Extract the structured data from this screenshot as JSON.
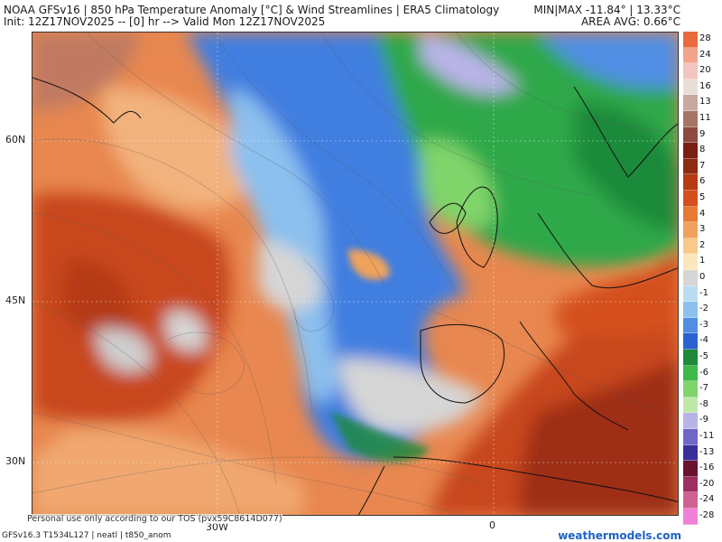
{
  "header": {
    "title": "NOAA GFSv16 | 850 hPa Temperature Anomaly [°C] & Wind Streamlines | ERA5 Climatology",
    "init": "Init: 12Z17NOV2025 -- [0] hr --> Valid Mon 12Z17NOV2025",
    "minmax": "MIN|MAX -11.84° | 13.33°C",
    "area_avg": "AREA AVG: 0.66°C"
  },
  "map": {
    "lat_labels": [
      "60N",
      "45N",
      "30N"
    ],
    "lon_labels": [
      "30W",
      "0"
    ],
    "disclaimer": "Personal use only according to our TOS (pvx59C8614D077)"
  },
  "colorbar": {
    "labels": [
      "28",
      "24",
      "20",
      "16",
      "13",
      "11",
      "9",
      "8",
      "7",
      "6",
      "5",
      "4",
      "3",
      "2",
      "1",
      "0",
      "-1",
      "-2",
      "-3",
      "-4",
      "-5",
      "-6",
      "-7",
      "-8",
      "-9",
      "-11",
      "-13",
      "-16",
      "-20",
      "-24",
      "-28"
    ],
    "colors": [
      "#e86a3e",
      "#f4a48a",
      "#f3c5c0",
      "#e8ded8",
      "#c9a99e",
      "#a77568",
      "#8c4a42",
      "#7a1e14",
      "#8e2a10",
      "#b63a12",
      "#d4501a",
      "#e67a34",
      "#f0a25c",
      "#f7c98a",
      "#fbe6bd",
      "#d6d6d6",
      "#b9dcf2",
      "#8cc0ee",
      "#4f8ee3",
      "#2a62cf",
      "#1d8a3a",
      "#3db84a",
      "#7fd46a",
      "#bfe8a8",
      "#b9b4e8",
      "#6f66c8",
      "#3a2e9a",
      "#6a1230",
      "#9e3060",
      "#d06090",
      "#f080d8"
    ]
  },
  "footer": {
    "model_info": "GFSv16.3 T1534L127 | neatl | t850_anom",
    "brand": "weathermodels.com"
  }
}
